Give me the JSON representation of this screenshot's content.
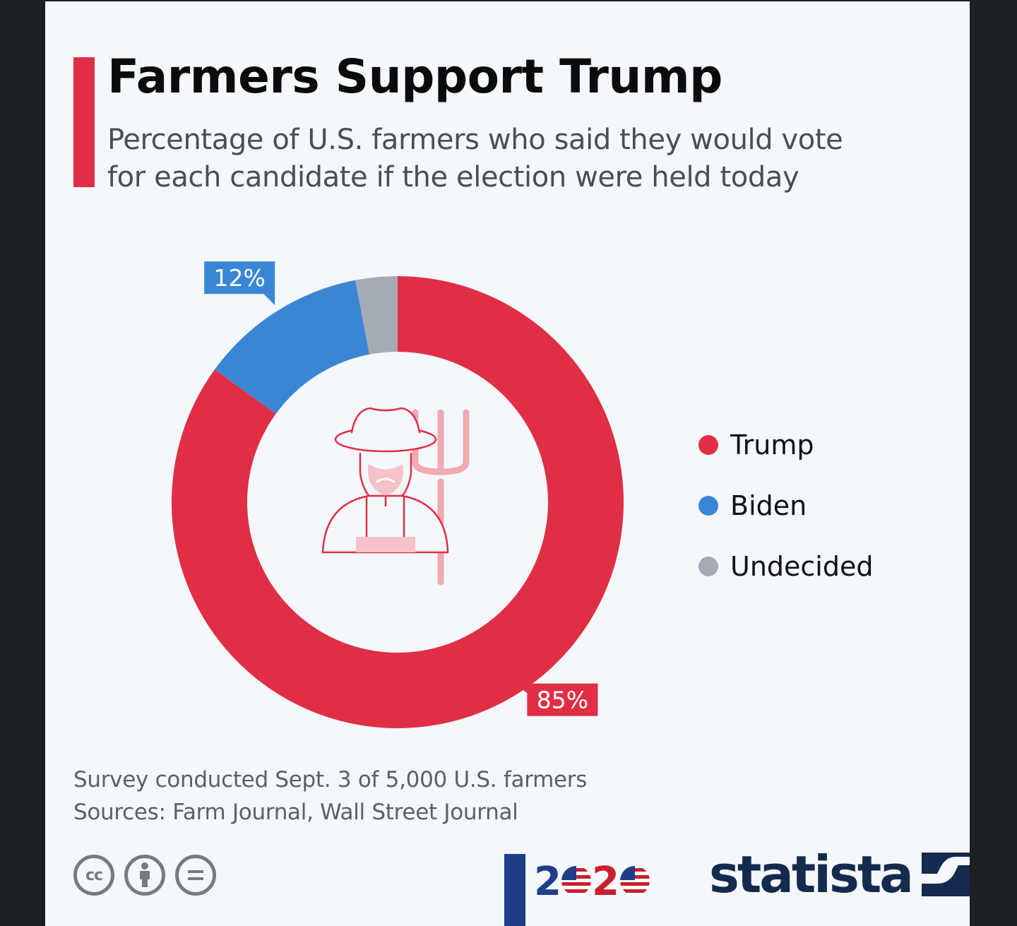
{
  "chart_data": {
    "type": "pie",
    "title": "Farmers Support Trump",
    "subtitle_lines": [
      "Percentage of U.S. farmers who said they would vote",
      "for each candidate if the election were held today"
    ],
    "categories": [
      "Trump",
      "Biden",
      "Undecided"
    ],
    "values": [
      85,
      12,
      3
    ],
    "colors": [
      "#e02f45",
      "#3a86d5",
      "#a4abb3"
    ],
    "data_labels": [
      {
        "series": "Trump",
        "text": "85%"
      },
      {
        "series": "Biden",
        "text": "12%"
      }
    ],
    "donut": true,
    "legend_position": "right"
  },
  "footnote": {
    "line1": "Survey conducted Sept. 3 of 5,000 U.S. farmers",
    "line2": "Sources: Farm Journal, Wall Street Journal"
  },
  "center_icon": "farmer-with-pitchfork-icon",
  "license_icons": [
    {
      "name": "cc-icon",
      "glyph": "cc"
    },
    {
      "name": "attribution-icon",
      "glyph": "person"
    },
    {
      "name": "no-derivatives-icon",
      "glyph": "="
    }
  ],
  "logos": {
    "election_logo_text": "2020",
    "statista_text": "statista"
  }
}
